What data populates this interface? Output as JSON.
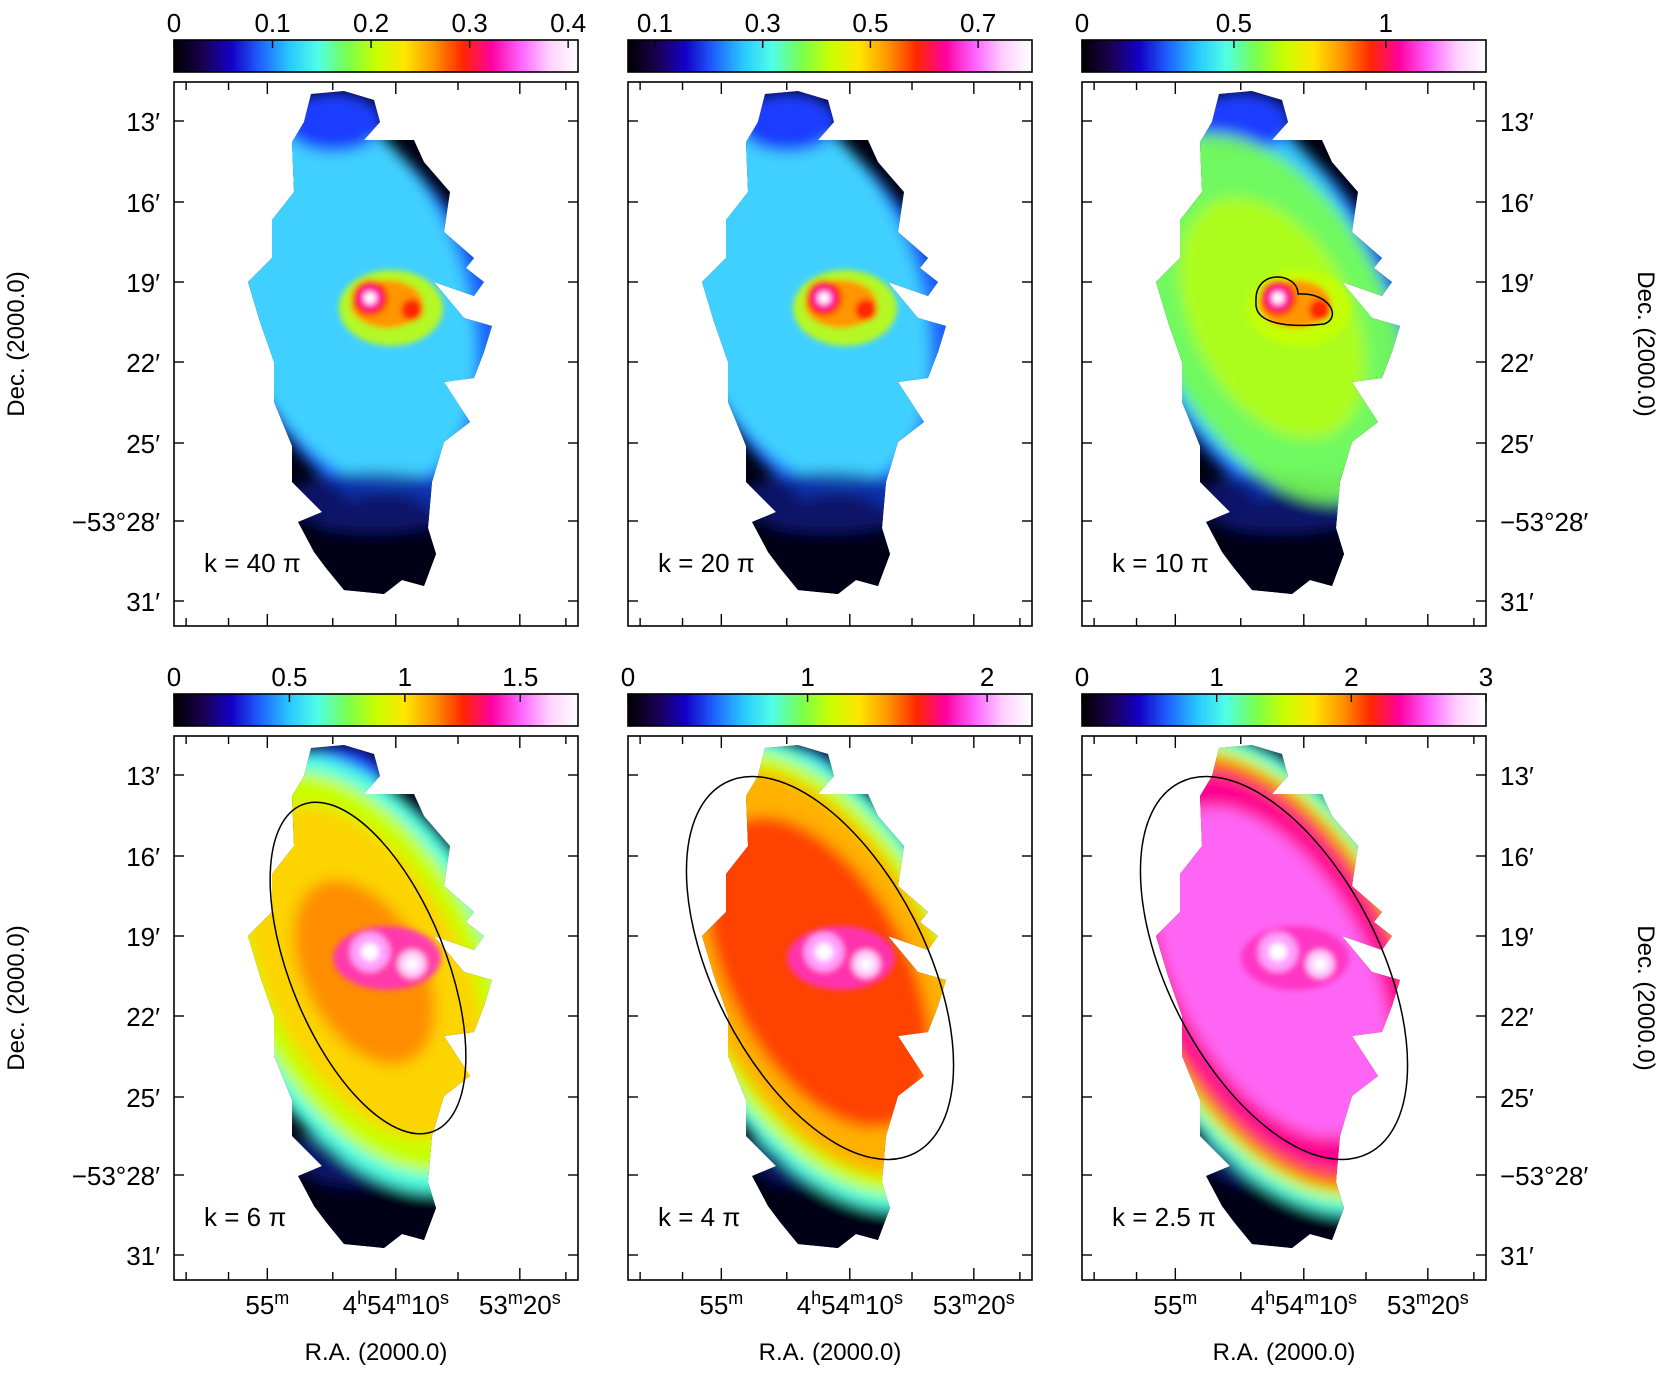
{
  "figure": {
    "dec_axis_title": "Dec. (2000.0)",
    "ra_axis_title": "R.A. (2000.0)",
    "dec_tick_labels": [
      "13′",
      "16′",
      "19′",
      "22′",
      "25′",
      "−53°28′",
      "31′"
    ],
    "ra_tick_labels": [
      {
        "main": "55",
        "sup": "m",
        "rest": []
      },
      {
        "main": "4",
        "sup": "h",
        "rest": [
          [
            "54",
            "m"
          ],
          [
            "10",
            "s"
          ]
        ]
      },
      {
        "main": "53",
        "sup": "m",
        "rest": [
          [
            "20",
            "s"
          ]
        ]
      }
    ],
    "colormap": [
      "#000000",
      "#1a0050",
      "#1400c8",
      "#1e64ff",
      "#28c8ff",
      "#50ffe6",
      "#78ff50",
      "#c8ff00",
      "#ffe600",
      "#ff9600",
      "#ff2800",
      "#ff00a0",
      "#ff60ff",
      "#ffd0ff",
      "#ffffff"
    ],
    "contour_color": "#000000"
  },
  "panels": [
    {
      "k_label": "k = 40 π",
      "colorbar_ticks": [
        {
          "label": "0",
          "value": 0
        },
        {
          "label": "0.1",
          "value": 0.1
        },
        {
          "label": "0.2",
          "value": 0.2
        },
        {
          "label": "0.3",
          "value": 0.3
        },
        {
          "label": "0.4",
          "value": 0.4
        }
      ],
      "colorbar_range": [
        0,
        0.41
      ],
      "contour": "none"
    },
    {
      "k_label": "k = 20 π",
      "colorbar_ticks": [
        {
          "label": "0.1",
          "value": 0.1
        },
        {
          "label": "0.3",
          "value": 0.3
        },
        {
          "label": "0.5",
          "value": 0.5
        },
        {
          "label": "0.7",
          "value": 0.7
        }
      ],
      "colorbar_range": [
        0.05,
        0.8
      ],
      "contour": "none"
    },
    {
      "k_label": "k = 10 π",
      "colorbar_ticks": [
        {
          "label": "0",
          "value": 0
        },
        {
          "label": "0.5",
          "value": 0.5
        },
        {
          "label": "1",
          "value": 1
        }
      ],
      "colorbar_range": [
        0,
        1.33
      ],
      "contour": "core"
    },
    {
      "k_label": "k = 6 π",
      "colorbar_ticks": [
        {
          "label": "0",
          "value": 0
        },
        {
          "label": "0.5",
          "value": 0.5
        },
        {
          "label": "1",
          "value": 1
        },
        {
          "label": "1.5",
          "value": 1.5
        }
      ],
      "colorbar_range": [
        0,
        1.75
      ],
      "contour": "inner"
    },
    {
      "k_label": "k = 4 π",
      "colorbar_ticks": [
        {
          "label": "0",
          "value": 0
        },
        {
          "label": "1",
          "value": 1
        },
        {
          "label": "2",
          "value": 2
        }
      ],
      "colorbar_range": [
        0,
        2.25
      ],
      "contour": "outer"
    },
    {
      "k_label": "k = 2.5 π",
      "colorbar_ticks": [
        {
          "label": "0",
          "value": 0
        },
        {
          "label": "1",
          "value": 1
        },
        {
          "label": "2",
          "value": 2
        },
        {
          "label": "3",
          "value": 3
        }
      ],
      "colorbar_range": [
        0,
        3.0
      ],
      "contour": "outer"
    }
  ]
}
